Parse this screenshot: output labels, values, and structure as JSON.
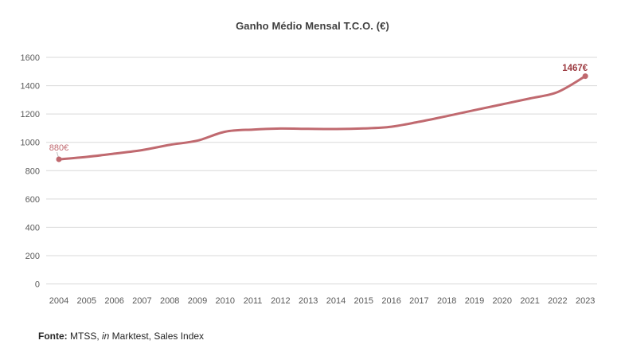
{
  "title": "Ganho Médio Mensal T.C.O. (€)",
  "source_note": {
    "label": "Fonte:",
    "part1": " MTSS, ",
    "italic_word": "in",
    "part2": " Marktest, Sales Index"
  },
  "colors": {
    "line": "#C0696F",
    "marker": "#C0696F",
    "first_label": "#C0696F",
    "last_label": "#9C3A40",
    "title_text": "#404040",
    "axis_text": "#595959",
    "gridline": "#D9D9D9",
    "leader_line": "#BFBFBF",
    "background": "#FFFFFF"
  },
  "chart_data": {
    "type": "line",
    "title": "Ganho Médio Mensal T.C.O. (€)",
    "x": [
      2004,
      2005,
      2006,
      2007,
      2008,
      2009,
      2010,
      2011,
      2012,
      2013,
      2014,
      2015,
      2016,
      2017,
      2018,
      2019,
      2020,
      2021,
      2022,
      2023
    ],
    "series": [
      {
        "name": "Ganho Médio Mensal T.C.O. (€)",
        "values": [
          880,
          897,
          920,
          945,
          982,
          1012,
          1075,
          1090,
          1097,
          1095,
          1094,
          1098,
          1110,
          1145,
          1185,
          1227,
          1268,
          1310,
          1355,
          1467
        ]
      }
    ],
    "ylim": [
      0,
      1600
    ],
    "ytick_step": 200,
    "yticks": [
      0,
      200,
      400,
      600,
      800,
      1000,
      1200,
      1400,
      1600
    ],
    "grid": true,
    "legend": "none",
    "smooth": true,
    "first_point_label": "880€",
    "last_point_label": "1467€"
  }
}
